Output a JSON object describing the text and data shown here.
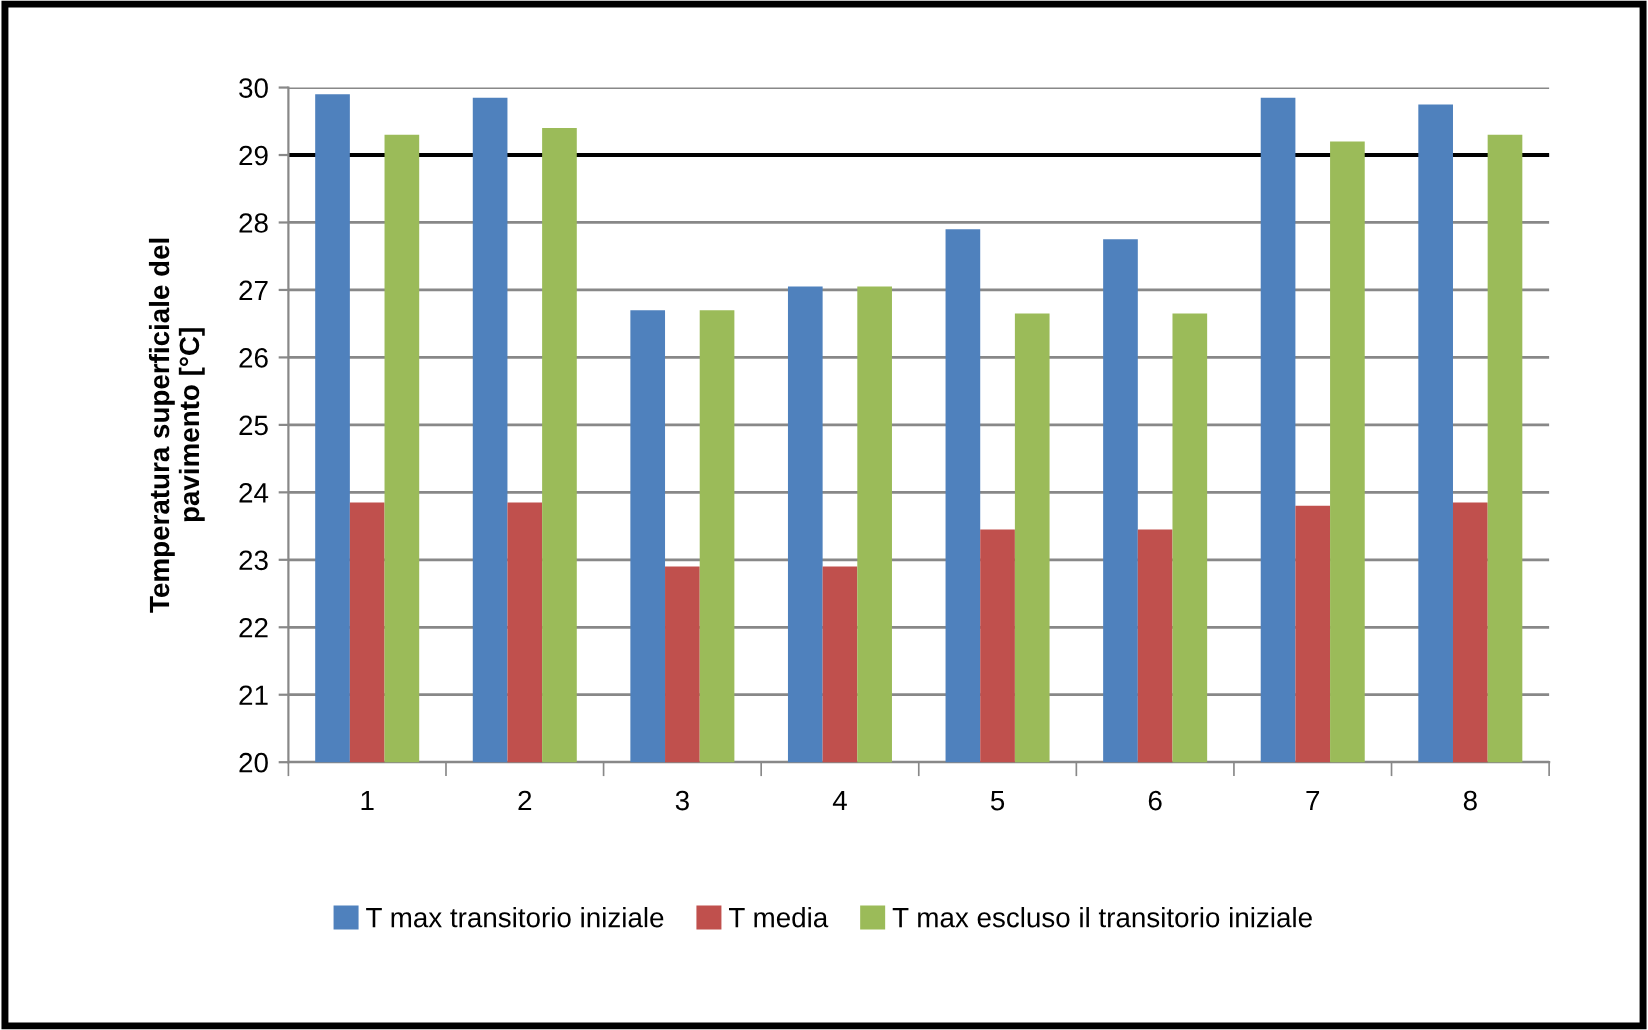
{
  "chart_data": {
    "type": "bar",
    "ylabel": "Temperatura superficiale del\npavimento [°C]",
    "categories": [
      "1",
      "2",
      "3",
      "4",
      "5",
      "6",
      "7",
      "8"
    ],
    "series": [
      {
        "name": "T max transitorio iniziale",
        "color": "#4f81bd",
        "values": [
          29.9,
          29.85,
          26.7,
          27.05,
          27.9,
          27.75,
          29.85,
          29.75
        ]
      },
      {
        "name": "T media",
        "color": "#c0504d",
        "values": [
          23.85,
          23.85,
          22.9,
          22.9,
          23.45,
          23.45,
          23.8,
          23.85
        ]
      },
      {
        "name": "T max escluso il transitorio iniziale",
        "color": "#9bbb59",
        "values": [
          29.3,
          29.4,
          26.7,
          27.05,
          26.65,
          26.65,
          29.2,
          29.3
        ]
      }
    ],
    "ylim": [
      20,
      30
    ],
    "yticks": [
      20,
      21,
      22,
      23,
      24,
      25,
      26,
      27,
      28,
      29,
      30
    ],
    "grid": "y",
    "legend": "bottom",
    "ref_lines": [
      {
        "axis": "y",
        "value": 29,
        "color": "#000000"
      }
    ]
  }
}
